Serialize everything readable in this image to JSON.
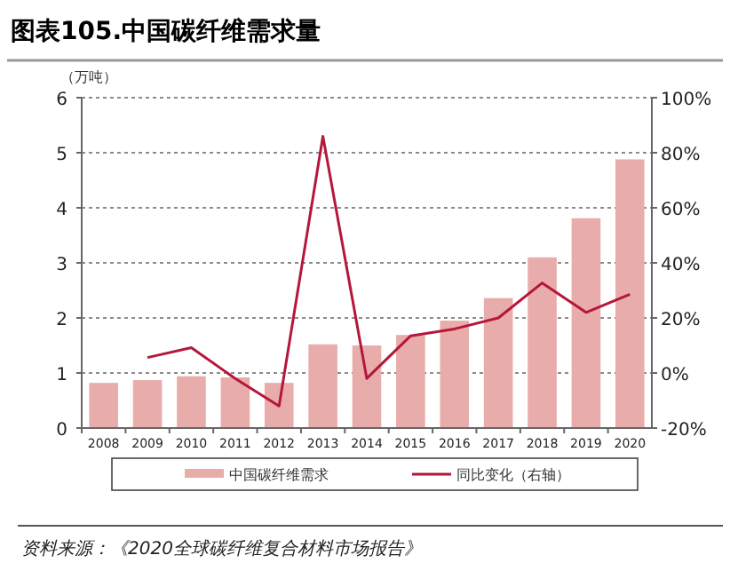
{
  "chart_data": {
    "type": "bar",
    "title": "图表105.中国碳纤维需求量",
    "ylabel": "（万吨）",
    "categories": [
      "2008",
      "2009",
      "2010",
      "2011",
      "2012",
      "2013",
      "2014",
      "2015",
      "2016",
      "2017",
      "2018",
      "2019",
      "2020"
    ],
    "series": [
      {
        "name": "中国碳纤维需求",
        "color": "#e8adaa",
        "values": [
          0.82,
          0.87,
          0.94,
          0.92,
          0.82,
          1.52,
          1.5,
          1.69,
          1.95,
          2.36,
          3.1,
          3.81,
          4.88
        ]
      },
      {
        "name": "同比变化（右轴）",
        "type": "line",
        "axis": "y2",
        "color": "#b5173a",
        "values": [
          null,
          5.6,
          9.2,
          -2,
          -12,
          86,
          -2,
          13.5,
          16,
          20,
          32.7,
          22,
          28.6
        ]
      }
    ],
    "ylim": [
      0,
      6
    ],
    "yticks": [
      0,
      1,
      2,
      3,
      4,
      5,
      6
    ],
    "y2lim": [
      -20,
      100
    ],
    "y2ticks": [
      {
        "value": -20,
        "label": "-20%"
      },
      {
        "value": 0,
        "label": "0%"
      },
      {
        "value": 20,
        "label": "20%"
      },
      {
        "value": 40,
        "label": "40%"
      },
      {
        "value": 60,
        "label": "60%"
      },
      {
        "value": 80,
        "label": "80%"
      },
      {
        "value": 100,
        "label": "100%"
      }
    ],
    "grid": "y",
    "legend": "bottom",
    "annotations": [
      "资料来源：《2020全球碳纤维复合材料市场报告》"
    ]
  }
}
